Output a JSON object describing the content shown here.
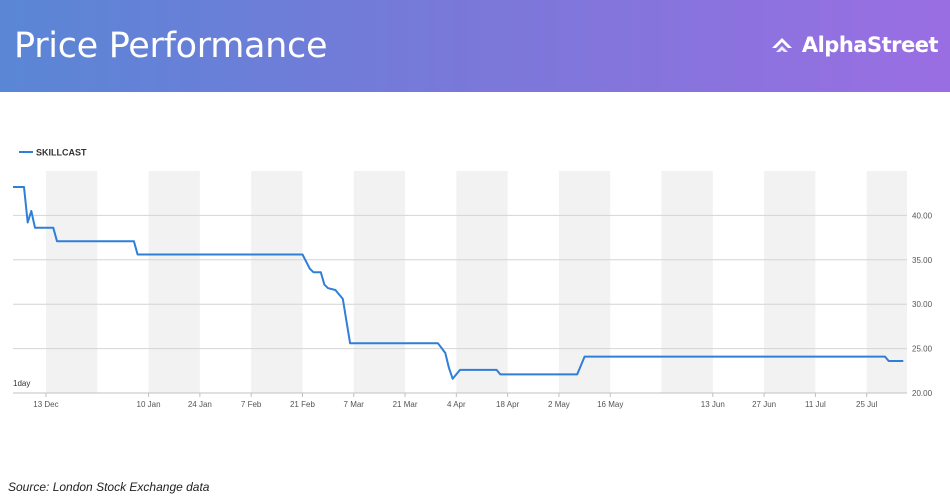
{
  "header": {
    "title": "Price Performance",
    "brand": "AlphaStreet",
    "gradient_start": "#5a86d6",
    "gradient_end": "#9a6ee3",
    "logo_icon": "alphastreet-logo-icon"
  },
  "footer": {
    "source": "Source: London Stock Exchange data"
  },
  "chart_data": {
    "type": "line",
    "range_label": "1day",
    "x_start": "2021-12-04",
    "x_end": "2022-08-05",
    "x_ticks": [
      {
        "date": "2021-12-13",
        "label": "13 Dec"
      },
      {
        "date": "2022-01-10",
        "label": "10 Jan"
      },
      {
        "date": "2022-01-24",
        "label": "24 Jan"
      },
      {
        "date": "2022-02-07",
        "label": "7 Feb"
      },
      {
        "date": "2022-02-21",
        "label": "21 Feb"
      },
      {
        "date": "2022-03-07",
        "label": "7 Mar"
      },
      {
        "date": "2022-03-21",
        "label": "21 Mar"
      },
      {
        "date": "2022-04-04",
        "label": "4 Apr"
      },
      {
        "date": "2022-04-18",
        "label": "18 Apr"
      },
      {
        "date": "2022-05-02",
        "label": "2 May"
      },
      {
        "date": "2022-05-16",
        "label": "16 May"
      },
      {
        "date": "2022-06-13",
        "label": "13 Jun"
      },
      {
        "date": "2022-06-27",
        "label": "27 Jun"
      },
      {
        "date": "2022-07-11",
        "label": "11 Jul"
      },
      {
        "date": "2022-07-25",
        "label": "25 Jul"
      }
    ],
    "ylim": [
      20,
      45
    ],
    "y_ticks": [
      20,
      25,
      30,
      35,
      40
    ],
    "y_tick_labels": [
      "20.00",
      "25.00",
      "30.00",
      "35.00",
      "40.00"
    ],
    "grid": true,
    "legend_position": "top-left",
    "shaded_bands": [
      [
        "2021-12-13",
        "2021-12-27"
      ],
      [
        "2022-01-10",
        "2022-01-24"
      ],
      [
        "2022-02-07",
        "2022-02-21"
      ],
      [
        "2022-03-07",
        "2022-03-21"
      ],
      [
        "2022-04-04",
        "2022-04-18"
      ],
      [
        "2022-05-02",
        "2022-05-16"
      ],
      [
        "2022-05-30",
        "2022-06-13"
      ],
      [
        "2022-06-27",
        "2022-07-11"
      ],
      [
        "2022-07-25",
        "2022-08-05"
      ]
    ],
    "series": [
      {
        "name": "SKILLCAST",
        "color": "#2f7ed8",
        "points": [
          [
            "2021-12-04",
            43.2
          ],
          [
            "2021-12-07",
            43.2
          ],
          [
            "2021-12-08",
            39.2
          ],
          [
            "2021-12-09",
            40.5
          ],
          [
            "2021-12-10",
            38.6
          ],
          [
            "2021-12-15",
            38.6
          ],
          [
            "2021-12-16",
            37.1
          ],
          [
            "2022-01-06",
            37.1
          ],
          [
            "2022-01-07",
            35.6
          ],
          [
            "2022-02-21",
            35.6
          ],
          [
            "2022-02-23",
            34.0
          ],
          [
            "2022-02-24",
            33.6
          ],
          [
            "2022-02-26",
            33.6
          ],
          [
            "2022-02-27",
            32.2
          ],
          [
            "2022-02-28",
            31.8
          ],
          [
            "2022-03-02",
            31.6
          ],
          [
            "2022-03-04",
            30.6
          ],
          [
            "2022-03-06",
            25.6
          ],
          [
            "2022-03-30",
            25.6
          ],
          [
            "2022-04-01",
            24.5
          ],
          [
            "2022-04-02",
            22.8
          ],
          [
            "2022-04-03",
            21.6
          ],
          [
            "2022-04-05",
            22.6
          ],
          [
            "2022-04-15",
            22.6
          ],
          [
            "2022-04-16",
            22.1
          ],
          [
            "2022-05-06",
            22.1
          ],
          [
            "2022-05-07",
            22.1
          ],
          [
            "2022-05-09",
            24.1
          ],
          [
            "2022-07-30",
            24.1
          ],
          [
            "2022-07-31",
            23.6
          ],
          [
            "2022-08-04",
            23.6
          ]
        ]
      }
    ]
  }
}
